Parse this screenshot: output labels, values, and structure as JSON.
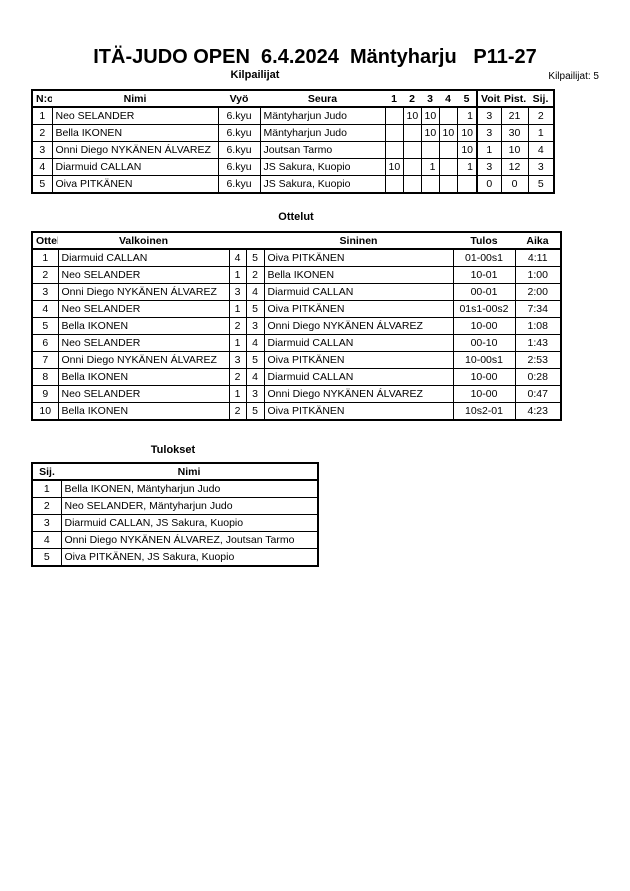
{
  "title": "ITÄ-JUDO OPEN  6.4.2024  Mäntyharju   P11-27",
  "competitors": {
    "heading": "Kilpailijat",
    "count_label": "Kilpailijat: 5",
    "columns": [
      "N:o",
      "Nimi",
      "Vyö",
      "Seura",
      "1",
      "2",
      "3",
      "4",
      "5",
      "Voit.",
      "Pist.",
      "Sij."
    ],
    "rows": [
      [
        "1",
        "Neo SELANDER",
        "6.kyu",
        "Mäntyharjun Judo",
        "",
        "10",
        "10",
        "",
        "1",
        "3",
        "21",
        "2"
      ],
      [
        "2",
        "Bella IKONEN",
        "6.kyu",
        "Mäntyharjun Judo",
        "",
        "",
        "10",
        "10",
        "10",
        "3",
        "30",
        "1"
      ],
      [
        "3",
        "Onni Diego NYKÄNEN ÁLVAREZ",
        "6.kyu",
        "Joutsan Tarmo",
        "",
        "",
        "",
        "",
        "10",
        "1",
        "10",
        "4"
      ],
      [
        "4",
        "Diarmuid CALLAN",
        "6.kyu",
        "JS Sakura, Kuopio",
        "10",
        "",
        "1",
        "",
        "1",
        "3",
        "12",
        "3"
      ],
      [
        "5",
        "Oiva PITKÄNEN",
        "6.kyu",
        "JS Sakura, Kuopio",
        "",
        "",
        "",
        "",
        "",
        "0",
        "0",
        "5"
      ]
    ]
  },
  "matches": {
    "heading": "Ottelut",
    "columns": [
      "Ottelu",
      "Valkoinen",
      "",
      "",
      "Sininen",
      "Tulos",
      "Aika"
    ],
    "rows": [
      [
        "1",
        "Diarmuid CALLAN",
        "4",
        "5",
        "Oiva PITKÄNEN",
        "01-00s1",
        "4:11"
      ],
      [
        "2",
        "Neo SELANDER",
        "1",
        "2",
        "Bella IKONEN",
        "10-01",
        "1:00"
      ],
      [
        "3",
        "Onni Diego NYKÄNEN ÁLVAREZ",
        "3",
        "4",
        "Diarmuid CALLAN",
        "00-01",
        "2:00"
      ],
      [
        "4",
        "Neo SELANDER",
        "1",
        "5",
        "Oiva PITKÄNEN",
        "01s1-00s2",
        "7:34"
      ],
      [
        "5",
        "Bella IKONEN",
        "2",
        "3",
        "Onni Diego NYKÄNEN ÁLVAREZ",
        "10-00",
        "1:08"
      ],
      [
        "6",
        "Neo SELANDER",
        "1",
        "4",
        "Diarmuid CALLAN",
        "00-10",
        "1:43"
      ],
      [
        "7",
        "Onni Diego NYKÄNEN ÁLVAREZ",
        "3",
        "5",
        "Oiva PITKÄNEN",
        "10-00s1",
        "2:53"
      ],
      [
        "8",
        "Bella IKONEN",
        "2",
        "4",
        "Diarmuid CALLAN",
        "10-00",
        "0:28"
      ],
      [
        "9",
        "Neo SELANDER",
        "1",
        "3",
        "Onni Diego NYKÄNEN ÁLVAREZ",
        "10-00",
        "0:47"
      ],
      [
        "10",
        "Bella IKONEN",
        "2",
        "5",
        "Oiva PITKÄNEN",
        "10s2-01",
        "4:23"
      ]
    ]
  },
  "results": {
    "heading": "Tulokset",
    "columns": [
      "Sij.",
      "Nimi"
    ],
    "rows": [
      [
        "1",
        "Bella IKONEN, Mäntyharjun Judo"
      ],
      [
        "2",
        "Neo SELANDER, Mäntyharjun Judo"
      ],
      [
        "3",
        "Diarmuid CALLAN, JS Sakura, Kuopio"
      ],
      [
        "4",
        "Onni Diego NYKÄNEN ÁLVAREZ, Joutsan Tarmo"
      ],
      [
        "5",
        "Oiva PITKÄNEN, JS Sakura, Kuopio"
      ]
    ]
  }
}
